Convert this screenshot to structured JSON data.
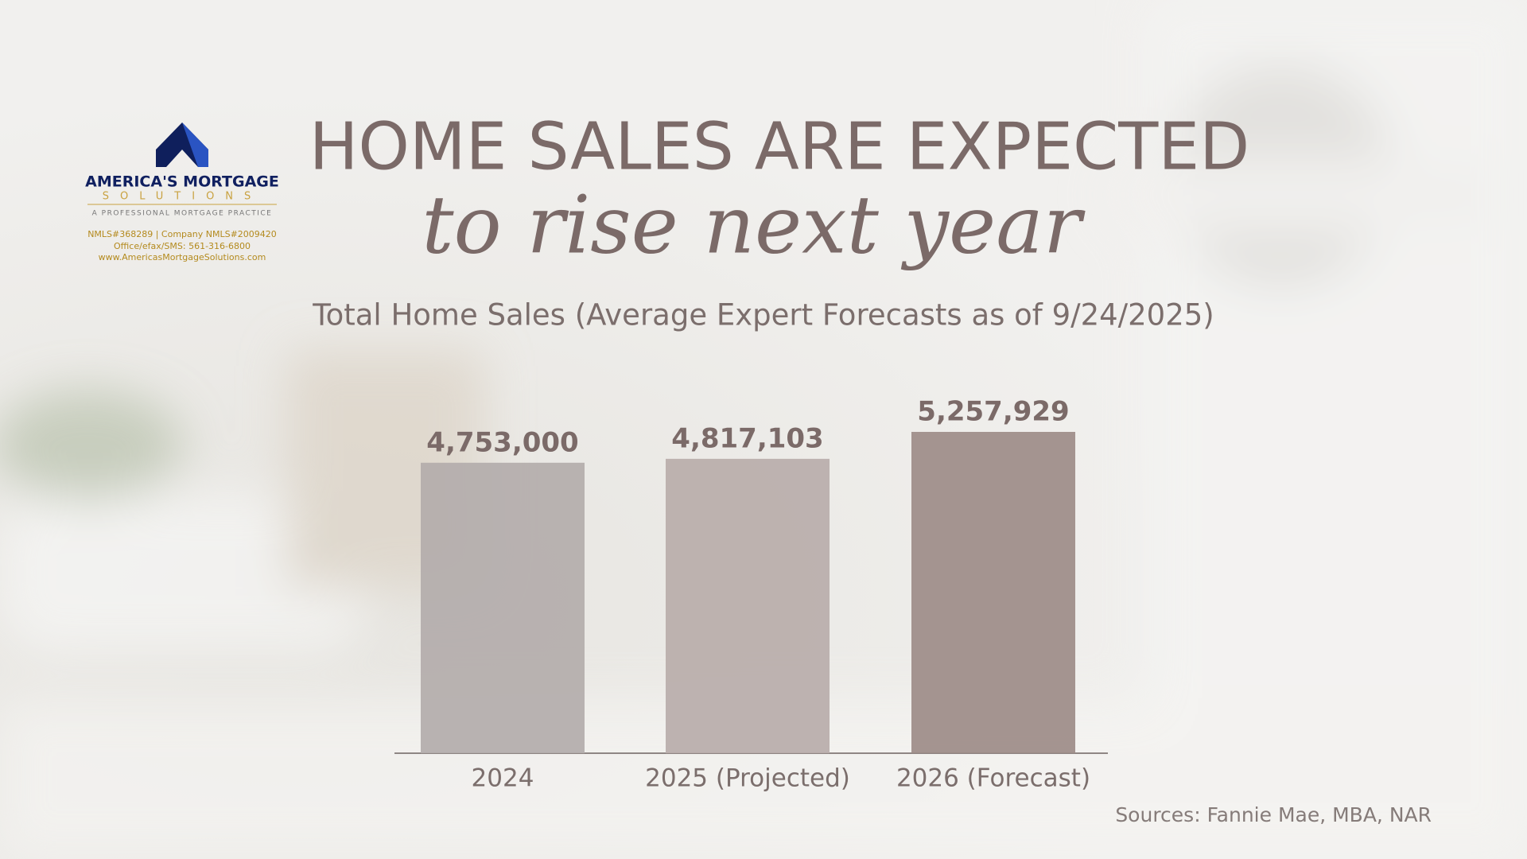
{
  "chart_data": {
    "type": "bar",
    "title": "HOME SALES ARE EXPECTED",
    "subtitle_italic": "to rise next year",
    "subtitle": "Total Home Sales (Average Expert Forecasts as of 9/24/2025)",
    "categories": [
      "2024",
      "2025 (Projected)",
      "2026 (Forecast)"
    ],
    "values": [
      4753000,
      4817103,
      5257929
    ],
    "value_labels": [
      "4,753,000",
      "4,817,103",
      "5,257,929"
    ],
    "colors": [
      "#b3acab",
      "#b8adaa",
      "#9d8c88"
    ],
    "source": "Sources:  Fannie Mae, MBA, NAR"
  },
  "logo": {
    "name": "AMERICA'S MORTGAGE",
    "name2": "SOLUTIONS",
    "tagline": "A PROFESSIONAL MORTGAGE PRACTICE",
    "nmls": "NMLS#368289 | Company NMLS#2009420",
    "phone": "Office/efax/SMS: 561-316-6800",
    "web": "www.AmericasMortgageSolutions.com"
  }
}
